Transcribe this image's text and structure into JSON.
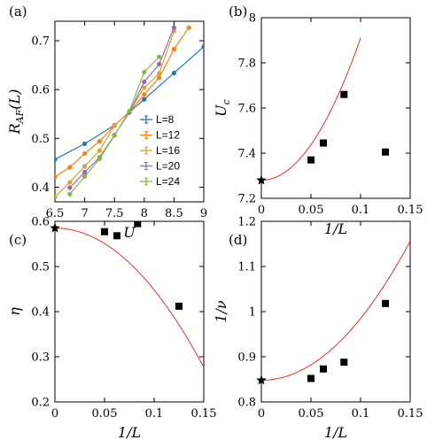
{
  "chart_data": [
    {
      "panel_label": "(a)",
      "type": "line",
      "xlabel": "U",
      "ylabel": "R_AF(L)",
      "xlim": [
        6.5,
        9
      ],
      "ylim": [
        0.37,
        0.74
      ],
      "xticks": [
        "6.5",
        "7",
        "7.5",
        "8",
        "8.5",
        "9"
      ],
      "yticks": [
        "0.4",
        "0.5",
        "0.6",
        "0.7"
      ],
      "x": [
        6.5,
        6.75,
        7.0,
        7.25,
        7.5,
        7.75,
        8.0,
        8.25,
        8.5,
        8.75,
        9.0
      ],
      "series": [
        {
          "name": "L=8",
          "color": "#1f77b4",
          "values": [
            0.457,
            null,
            0.489,
            null,
            0.527,
            null,
            0.58,
            null,
            0.634,
            null,
            0.688
          ]
        },
        {
          "name": "L=12",
          "color": "#ff7f0e",
          "values": [
            0.421,
            0.441,
            0.469,
            0.494,
            0.527,
            0.554,
            0.59,
            0.624,
            0.683,
            0.727,
            null
          ]
        },
        {
          "name": "L=16",
          "color": "#e0a030",
          "values": [
            0.38,
            0.41,
            0.443,
            0.475,
            0.526,
            0.555,
            0.604,
            0.633,
            0.72,
            null,
            null
          ]
        },
        {
          "name": "L=20",
          "color": "#9467bd",
          "values": [
            null,
            0.399,
            0.431,
            0.461,
            0.507,
            0.553,
            0.616,
            0.652,
            0.727,
            null,
            null
          ]
        },
        {
          "name": "L=24",
          "color": "#7bbf3a",
          "values": [
            null,
            0.386,
            0.422,
            0.458,
            0.506,
            0.556,
            0.636,
            0.667,
            null,
            null,
            null
          ]
        }
      ],
      "legend_position": "bottom-right"
    },
    {
      "panel_label": "(b)",
      "type": "scatter",
      "xlabel": "1/L",
      "ylabel": "U_c",
      "xlim": [
        0,
        0.15
      ],
      "ylim": [
        7.2,
        8
      ],
      "xticks": [
        "0",
        "0.05",
        "0.1",
        "0.15"
      ],
      "yticks": [
        "7.2",
        "7.4",
        "7.6",
        "7.8",
        "8"
      ],
      "points": [
        {
          "x": 0.05,
          "y": 7.37
        },
        {
          "x": 0.0625,
          "y": 7.445
        },
        {
          "x": 0.0833,
          "y": 7.66
        },
        {
          "x": 0.125,
          "y": 7.405
        }
      ],
      "extrapolated": {
        "x": 0,
        "y": 7.28
      },
      "fit": {
        "color": "#e8302a",
        "x_range": [
          0,
          0.1
        ],
        "a": 7.28,
        "b": 0,
        "c": 63
      }
    },
    {
      "panel_label": "(c)",
      "type": "scatter",
      "xlabel": "1/L",
      "ylabel": "η",
      "xlim": [
        0,
        0.15
      ],
      "ylim": [
        0.2,
        0.6
      ],
      "xticks": [
        "0",
        "0.05",
        "0.1",
        "0.15"
      ],
      "yticks": [
        "0.2",
        "0.3",
        "0.4",
        "0.5",
        "0.6"
      ],
      "points": [
        {
          "x": 0.05,
          "y": 0.577
        },
        {
          "x": 0.0625,
          "y": 0.568
        },
        {
          "x": 0.0833,
          "y": 0.595
        },
        {
          "x": 0.125,
          "y": 0.412
        }
      ],
      "extrapolated": {
        "x": 0,
        "y": 0.585
      },
      "fit": {
        "color": "#e8302a",
        "x_range": [
          0,
          0.15
        ],
        "a": 0.585,
        "b": 0,
        "c": -13.7
      }
    },
    {
      "panel_label": "(d)",
      "type": "scatter",
      "xlabel": "1/L",
      "ylabel": "1/ν",
      "xlim": [
        0,
        0.15
      ],
      "ylim": [
        0.8,
        1.2
      ],
      "xticks": [
        "0",
        "0.05",
        "0.1",
        "0.15"
      ],
      "yticks": [
        "0.8",
        "0.9",
        "1",
        "1.1",
        "1.2"
      ],
      "points": [
        {
          "x": 0.05,
          "y": 0.852
        },
        {
          "x": 0.0625,
          "y": 0.873
        },
        {
          "x": 0.0833,
          "y": 0.888
        },
        {
          "x": 0.125,
          "y": 1.018
        }
      ],
      "extrapolated": {
        "x": 0,
        "y": 0.848
      },
      "fit": {
        "color": "#e8302a",
        "x_range": [
          0,
          0.15
        ],
        "a": 0.848,
        "b": 0,
        "c": 13.7
      }
    }
  ]
}
